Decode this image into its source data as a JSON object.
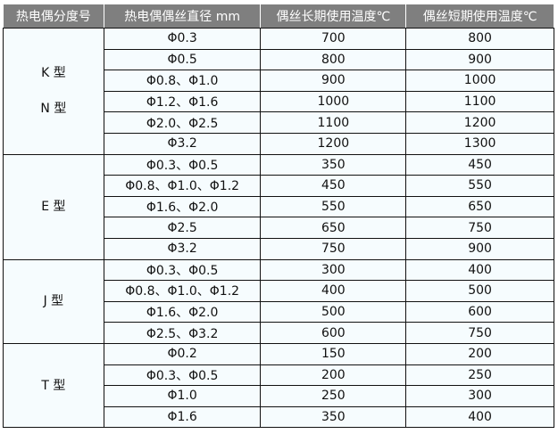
{
  "headers": [
    "热电偶分度号",
    "热电偶偶丝直径 mm",
    "偶丝长期使用温度℃",
    "偶丝短期使用温度℃"
  ],
  "groups": [
    {
      "type": [
        "K 型",
        "N 型"
      ],
      "rows": [
        [
          "Φ0.3",
          "700",
          "800"
        ],
        [
          "Φ0.5",
          "800",
          "900"
        ],
        [
          "Φ0.8、Φ1.0",
          "900",
          "1000"
        ],
        [
          "Φ1.2、Φ1.6",
          "1000",
          "1100"
        ],
        [
          "Φ2.0、Φ2.5",
          "1100",
          "1200"
        ],
        [
          "Φ3.2",
          "1200",
          "1300"
        ]
      ]
    },
    {
      "type": [
        "E 型"
      ],
      "rows": [
        [
          "Φ0.3、Φ0.5",
          "350",
          "450"
        ],
        [
          "Φ0.8、Φ1.0、Φ1.2",
          "450",
          "550"
        ],
        [
          "Φ1.6、Φ2.0",
          "550",
          "650"
        ],
        [
          "Φ2.5",
          "650",
          "750"
        ],
        [
          "Φ3.2",
          "750",
          "900"
        ]
      ]
    },
    {
      "type": [
        "J 型"
      ],
      "rows": [
        [
          "Φ0.3、Φ0.5",
          "300",
          "400"
        ],
        [
          "Φ0.8、Φ1.0、Φ1.2",
          "400",
          "500"
        ],
        [
          "Φ1.6、Φ2.0",
          "500",
          "600"
        ],
        [
          "Φ2.5、Φ3.2",
          "600",
          "750"
        ]
      ]
    },
    {
      "type": [
        "T 型"
      ],
      "rows": [
        [
          "Φ0.2",
          "150",
          "200"
        ],
        [
          "Φ0.3、Φ0.5",
          "200",
          "250"
        ],
        [
          "Φ1.0",
          "250",
          "300"
        ],
        [
          "Φ1.6",
          "350",
          "400"
        ]
      ]
    }
  ]
}
